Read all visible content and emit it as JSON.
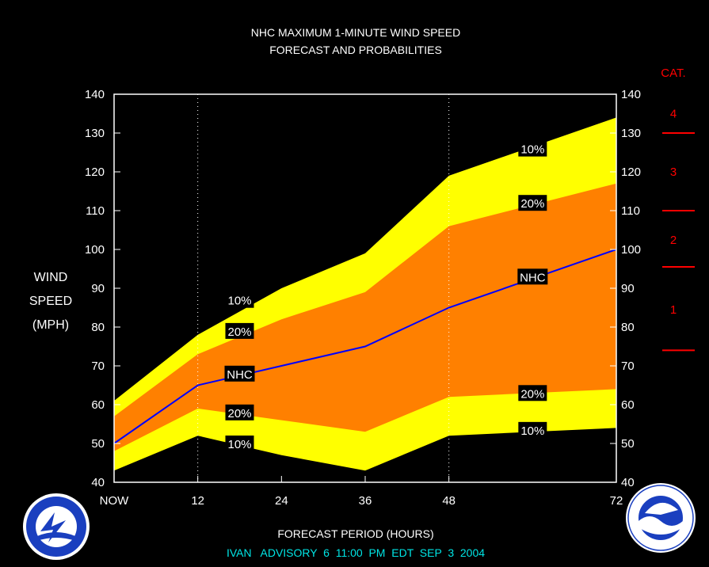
{
  "title_line1": "NHC MAXIMUM 1-MINUTE WIND SPEED",
  "title_line2": "FORECAST AND PROBABILITIES",
  "ylabel_line1": "WIND",
  "ylabel_line2": "SPEED",
  "ylabel_line3": "(MPH)",
  "xlabel": "FORECAST PERIOD (HOURS)",
  "footer": "IVAN   ADVISORY  6  11:00  PM  EDT  SEP  3  2004",
  "category_title": "CAT.",
  "categories": [
    {
      "label": "4",
      "value": 135
    },
    {
      "label": "3",
      "value": 120
    },
    {
      "label": "2",
      "value": 102.5
    },
    {
      "label": "1",
      "value": 84.5
    }
  ],
  "category_boundaries": [
    130,
    110,
    95.5,
    74
  ],
  "logos": {
    "left": "National Weather Service logo",
    "right": "NOAA logo"
  },
  "colors": {
    "yellow": "#ffff00",
    "orange": "#ff8000",
    "nhc_line": "#0000ff",
    "category": "#ff0000",
    "footer": "#00e5e5"
  },
  "chart_data": {
    "type": "area",
    "xlim": [
      0,
      72
    ],
    "ylim": [
      40,
      140
    ],
    "x_ticks": [
      0,
      12,
      24,
      36,
      48,
      72
    ],
    "x_tick_labels": [
      "NOW",
      "12",
      "24",
      "36",
      "48",
      "72"
    ],
    "y_ticks": [
      40,
      50,
      60,
      70,
      80,
      90,
      100,
      110,
      120,
      130,
      140
    ],
    "gridlines_x": [
      12,
      48
    ],
    "x": [
      0,
      12,
      24,
      36,
      48,
      72
    ],
    "series": [
      {
        "name": "10%",
        "values": [
          61,
          78,
          90,
          99,
          119,
          134
        ]
      },
      {
        "name": "20%",
        "values": [
          57,
          73,
          82,
          89,
          106,
          117
        ]
      },
      {
        "name": "NHC",
        "values": [
          50,
          65,
          70,
          75,
          85,
          100
        ]
      },
      {
        "name": "20%",
        "values": [
          48,
          59,
          56,
          53,
          62,
          64
        ]
      },
      {
        "name": "10%",
        "values": [
          43,
          52,
          47,
          43,
          52,
          54
        ]
      }
    ],
    "labels": [
      {
        "text": "10%",
        "x": 18,
        "y": 87
      },
      {
        "text": "20%",
        "x": 18,
        "y": 79
      },
      {
        "text": "NHC",
        "x": 18,
        "y": 68
      },
      {
        "text": "20%",
        "x": 18,
        "y": 58
      },
      {
        "text": "10%",
        "x": 18,
        "y": 50
      },
      {
        "text": "10%",
        "x": 60,
        "y": 126
      },
      {
        "text": "20%",
        "x": 60,
        "y": 112
      },
      {
        "text": "NHC",
        "x": 60,
        "y": 93
      },
      {
        "text": "20%",
        "x": 60,
        "y": 63
      },
      {
        "text": "10%",
        "x": 60,
        "y": 53.5
      }
    ]
  }
}
